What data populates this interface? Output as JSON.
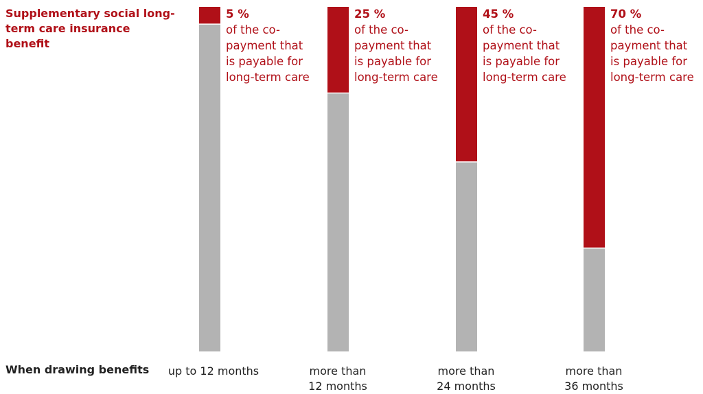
{
  "colors": {
    "accent": "#b01018",
    "base": "#b3b3b3"
  },
  "legend_title": "Supplementary social long-term care insurance benefit",
  "chart_data": {
    "type": "bar",
    "stacked": true,
    "xlabel": "When drawing benefits",
    "categories": [
      "up to 12 months",
      "more than\n12 months",
      "more than\n24 months",
      "more than\n36 months"
    ],
    "series": [
      {
        "values": [
          5,
          25,
          45,
          70
        ],
        "color": "#b01018"
      },
      {
        "values": [
          95,
          75,
          55,
          30
        ],
        "color": "#b3b3b3"
      }
    ],
    "value_labels": [
      "5 %",
      "25 %",
      "45 %",
      "70 %"
    ],
    "annotation": "of the co-\npayment that\nis payable for\nlong-term care",
    "ylim": [
      0,
      100
    ]
  }
}
